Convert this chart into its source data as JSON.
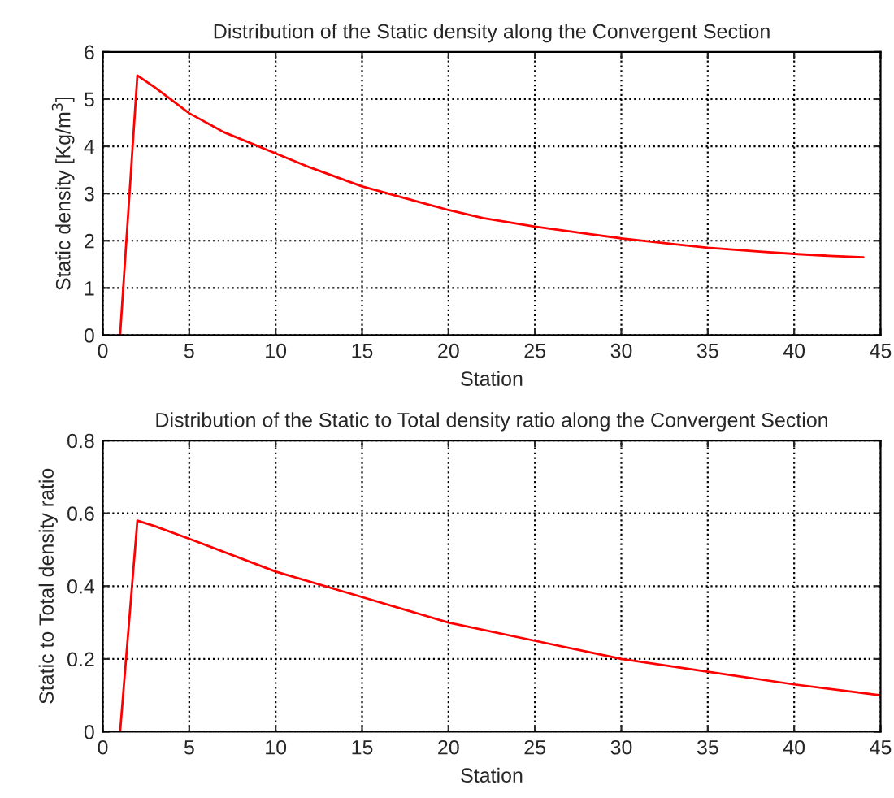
{
  "chart_data": [
    {
      "type": "line",
      "title": "Distribution of the Static density along the Convergent Section",
      "xlabel": "Station",
      "ylabel": "Static density [Kg/m$^{3}$]",
      "x": [
        1,
        2,
        3,
        5,
        7,
        10,
        12,
        15,
        18,
        20,
        22,
        25,
        28,
        30,
        33,
        35,
        38,
        40,
        42,
        44
      ],
      "series": [
        {
          "color": "#ff0000",
          "values": [
            0,
            5.5,
            5.25,
            4.7,
            4.3,
            3.85,
            3.55,
            3.15,
            2.85,
            2.65,
            2.48,
            2.3,
            2.15,
            2.05,
            1.93,
            1.85,
            1.77,
            1.72,
            1.68,
            1.65
          ]
        }
      ],
      "xlim": [
        0,
        45
      ],
      "ylim": [
        0,
        6
      ],
      "xticks": [
        0,
        5,
        10,
        15,
        20,
        25,
        30,
        35,
        40,
        45
      ],
      "yticks": [
        0,
        1,
        2,
        3,
        4,
        5,
        6
      ],
      "grid": true,
      "line_style": "solid"
    },
    {
      "type": "line",
      "title": "Distribution of the Static to Total density ratio along the Convergent Section",
      "xlabel": "Station",
      "ylabel": "Static to Total density ratio",
      "x": [
        1,
        2,
        3,
        5,
        10,
        15,
        20,
        25,
        30,
        35,
        40,
        45
      ],
      "series": [
        {
          "color": "#ff0000",
          "values": [
            0,
            0.58,
            0.565,
            0.53,
            0.44,
            0.37,
            0.3,
            0.25,
            0.2,
            0.165,
            0.13,
            0.1
          ]
        }
      ],
      "xlim": [
        0,
        45
      ],
      "ylim": [
        0,
        0.8
      ],
      "xticks": [
        0,
        5,
        10,
        15,
        20,
        25,
        30,
        35,
        40,
        45
      ],
      "yticks": [
        0,
        {
          "value": 0.2,
          "label": "0.2"
        },
        {
          "value": 0.4,
          "label": "0.4"
        },
        {
          "value": 0.6,
          "label": "0.6"
        },
        {
          "value": 0.8,
          "label": "0.8"
        }
      ],
      "grid": true,
      "line_style": "solid"
    }
  ]
}
